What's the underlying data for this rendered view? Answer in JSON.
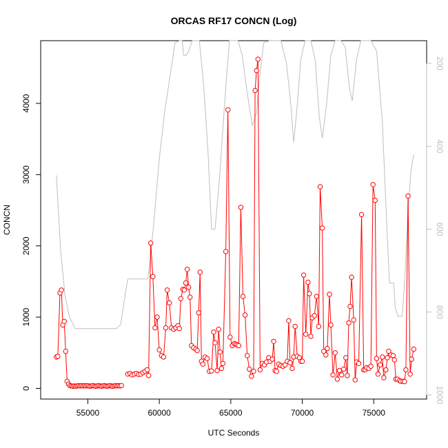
{
  "chart_data": {
    "type": "line",
    "title": "ORCAS RF17 CONCN (Log)",
    "xlabel": "UTC Seconds",
    "ylabel": "CONCN",
    "xlim": [
      51700,
      78700
    ],
    "ylim": [
      -150,
      4880
    ],
    "y2lim": [
      1010,
      145
    ],
    "x_ticks": [
      55000,
      60000,
      65000,
      70000,
      75000
    ],
    "y_ticks": [
      0,
      1000,
      2000,
      3000,
      4000
    ],
    "y2_ticks": [
      200,
      400,
      600,
      800,
      1000
    ],
    "grid": false,
    "series": [
      {
        "role": "concn",
        "color": "#ff0000",
        "segments": [
          [
            [
              52800,
              440
            ],
            [
              52900,
              450
            ],
            [
              53050,
              1340
            ],
            [
              53150,
              1380
            ],
            [
              53250,
              890
            ],
            [
              53350,
              940
            ],
            [
              53450,
              520
            ],
            [
              53550,
              100
            ],
            [
              53650,
              60
            ],
            [
              53750,
              40
            ],
            [
              53850,
              35
            ],
            [
              53950,
              30
            ],
            [
              54050,
              35
            ],
            [
              54150,
              30
            ],
            [
              54250,
              35
            ],
            [
              54350,
              40
            ],
            [
              54450,
              35
            ],
            [
              54550,
              40
            ],
            [
              54650,
              35
            ],
            [
              54750,
              40
            ],
            [
              54850,
              35
            ],
            [
              54950,
              40
            ],
            [
              55050,
              35
            ],
            [
              55150,
              30
            ],
            [
              55250,
              35
            ],
            [
              55350,
              40
            ],
            [
              55450,
              35
            ],
            [
              55550,
              30
            ],
            [
              55650,
              35
            ],
            [
              55750,
              40
            ],
            [
              55850,
              35
            ],
            [
              55950,
              30
            ],
            [
              56050,
              35
            ],
            [
              56150,
              40
            ],
            [
              56250,
              35
            ],
            [
              56350,
              30
            ],
            [
              56450,
              35
            ],
            [
              56550,
              40
            ],
            [
              56650,
              35
            ],
            [
              56750,
              30
            ],
            [
              56850,
              35
            ],
            [
              56950,
              40
            ],
            [
              57050,
              35
            ],
            [
              57150,
              40
            ],
            [
              57250,
              35
            ],
            [
              57350,
              40
            ]
          ],
          [
            [
              57800,
              200
            ],
            [
              57950,
              210
            ],
            [
              58100,
              190
            ],
            [
              58250,
              200
            ],
            [
              58400,
              210
            ],
            [
              58550,
              195
            ],
            [
              58700,
              200
            ],
            [
              58850,
              220
            ],
            [
              59000,
              240
            ],
            [
              59150,
              260
            ],
            [
              59250,
              180
            ],
            [
              59400,
              2040
            ],
            [
              59550,
              1570
            ],
            [
              59700,
              850
            ],
            [
              59850,
              1000
            ],
            [
              60000,
              540
            ],
            [
              60150,
              460
            ],
            [
              60300,
              440
            ],
            [
              60450,
              850
            ],
            [
              60550,
              1380
            ],
            [
              60700,
              1200
            ],
            [
              60850,
              850
            ],
            [
              61000,
              830
            ],
            [
              61150,
              850
            ],
            [
              61300,
              880
            ],
            [
              61400,
              840
            ],
            [
              61500,
              1260
            ],
            [
              61650,
              1390
            ],
            [
              61750,
              1380
            ],
            [
              61850,
              1480
            ],
            [
              61950,
              1670
            ],
            [
              62050,
              1420
            ],
            [
              62150,
              1280
            ],
            [
              62250,
              600
            ],
            [
              62400,
              570
            ],
            [
              62550,
              550
            ],
            [
              62650,
              530
            ],
            [
              62750,
              1060
            ],
            [
              62850,
              1630
            ],
            [
              62950,
              380
            ],
            [
              63050,
              340
            ],
            [
              63200,
              440
            ],
            [
              63350,
              420
            ],
            [
              63500,
              240
            ],
            [
              63650,
              245
            ],
            [
              63800,
              790
            ],
            [
              63900,
              640
            ],
            [
              64050,
              250
            ],
            [
              64150,
              830
            ],
            [
              64250,
              510
            ],
            [
              64350,
              280
            ],
            [
              64450,
              350
            ],
            [
              64650,
              1920
            ],
            [
              64800,
              3910
            ],
            [
              64950,
              720
            ],
            [
              65100,
              600
            ],
            [
              65250,
              630
            ],
            [
              65350,
              620
            ],
            [
              65450,
              610
            ],
            [
              65550,
              600
            ],
            [
              65700,
              2540
            ],
            [
              65850,
              1290
            ],
            [
              66000,
              1030
            ],
            [
              66150,
              460
            ],
            [
              66300,
              270
            ],
            [
              66450,
              170
            ],
            [
              66600,
              240
            ],
            [
              66700,
              4180
            ],
            [
              66800,
              4460
            ],
            [
              66900,
              4620
            ],
            [
              67050,
              260
            ],
            [
              67200,
              350
            ],
            [
              67350,
              330
            ],
            [
              67500,
              370
            ],
            [
              67650,
              430
            ],
            [
              67750,
              380
            ],
            [
              67900,
              410
            ],
            [
              68000,
              660
            ],
            [
              68100,
              250
            ],
            [
              68200,
              240
            ],
            [
              68350,
              340
            ],
            [
              68500,
              320
            ],
            [
              68650,
              310
            ],
            [
              68800,
              330
            ],
            [
              68950,
              380
            ],
            [
              69050,
              950
            ],
            [
              69150,
              360
            ],
            [
              69300,
              280
            ],
            [
              69400,
              440
            ],
            [
              69500,
              870
            ],
            [
              69650,
              450
            ],
            [
              69800,
              430
            ],
            [
              69900,
              380
            ],
            [
              70000,
              380
            ],
            [
              70100,
              1590
            ],
            [
              70250,
              760
            ],
            [
              70400,
              1490
            ],
            [
              70500,
              1330
            ],
            [
              70600,
              730
            ],
            [
              70700,
              990
            ],
            [
              70850,
              1020
            ],
            [
              71000,
              1290
            ],
            [
              71150,
              870
            ],
            [
              71250,
              2830
            ],
            [
              71400,
              2250
            ],
            [
              71500,
              520
            ],
            [
              71650,
              470
            ],
            [
              71750,
              560
            ],
            [
              71900,
              1320
            ],
            [
              72000,
              890
            ],
            [
              72150,
              190
            ],
            [
              72300,
              500
            ],
            [
              72450,
              130
            ],
            [
              72600,
              250
            ],
            [
              72750,
              190
            ],
            [
              72900,
              270
            ],
            [
              73050,
              430
            ],
            [
              73150,
              180
            ],
            [
              73250,
              920
            ],
            [
              73350,
              1150
            ],
            [
              73450,
              1560
            ],
            [
              73600,
              960
            ],
            [
              73700,
              120
            ],
            [
              73800,
              370
            ],
            [
              73950,
              350
            ],
            [
              74150,
              2440
            ],
            [
              74300,
              260
            ],
            [
              74400,
              260
            ],
            [
              74500,
              290
            ],
            [
              74650,
              280
            ],
            [
              74800,
              310
            ],
            [
              74950,
              2860
            ],
            [
              75100,
              2640
            ],
            [
              75200,
              420
            ],
            [
              75300,
              200
            ],
            [
              75450,
              330
            ],
            [
              75600,
              440
            ],
            [
              75700,
              150
            ],
            [
              75850,
              260
            ],
            [
              75950,
              430
            ],
            [
              76050,
              520
            ],
            [
              76200,
              470
            ],
            [
              76350,
              460
            ],
            [
              76450,
              400
            ],
            [
              76550,
              130
            ],
            [
              76650,
              130
            ],
            [
              76800,
              110
            ],
            [
              76900,
              100
            ],
            [
              77050,
              100
            ],
            [
              77150,
              95
            ],
            [
              77250,
              260
            ],
            [
              77400,
              2700
            ],
            [
              77550,
              200
            ],
            [
              77650,
              410
            ],
            [
              77800,
              550
            ]
          ]
        ]
      },
      {
        "role": "secondary-axis",
        "color": "#bebebe",
        "points": [
          [
            52800,
            470
          ],
          [
            53100,
            650
          ],
          [
            53400,
            760
          ],
          [
            53700,
            810
          ],
          [
            54100,
            840
          ],
          [
            54500,
            840
          ],
          [
            55000,
            840
          ],
          [
            55500,
            840
          ],
          [
            56000,
            840
          ],
          [
            56500,
            840
          ],
          [
            57000,
            840
          ],
          [
            57300,
            830
          ],
          [
            57600,
            760
          ],
          [
            57800,
            720
          ],
          [
            58200,
            720
          ],
          [
            58800,
            720
          ],
          [
            59200,
            720
          ],
          [
            59600,
            590
          ],
          [
            60000,
            430
          ],
          [
            60400,
            310
          ],
          [
            60800,
            220
          ],
          [
            61100,
            150
          ],
          [
            61400,
            120
          ],
          [
            61600,
            140
          ],
          [
            61700,
            180
          ],
          [
            61900,
            180
          ],
          [
            62050,
            170
          ],
          [
            62300,
            120
          ],
          [
            62600,
            115
          ],
          [
            62800,
            130
          ],
          [
            63100,
            250
          ],
          [
            63400,
            410
          ],
          [
            63650,
            600
          ],
          [
            63900,
            600
          ],
          [
            64200,
            480
          ],
          [
            64600,
            280
          ],
          [
            64900,
            140
          ],
          [
            65200,
            100
          ],
          [
            65500,
            120
          ],
          [
            65800,
            180
          ],
          [
            66100,
            260
          ],
          [
            66500,
            350
          ],
          [
            66800,
            320
          ],
          [
            67000,
            240
          ],
          [
            67300,
            150
          ],
          [
            67700,
            90
          ],
          [
            68100,
            80
          ],
          [
            68500,
            110
          ],
          [
            68900,
            200
          ],
          [
            69200,
            300
          ],
          [
            69400,
            390
          ],
          [
            69600,
            320
          ],
          [
            69900,
            190
          ],
          [
            70200,
            90
          ],
          [
            70600,
            110
          ],
          [
            70900,
            190
          ],
          [
            71200,
            330
          ],
          [
            71400,
            380
          ],
          [
            71700,
            300
          ],
          [
            72000,
            180
          ],
          [
            72300,
            90
          ],
          [
            72700,
            110
          ],
          [
            73000,
            160
          ],
          [
            73300,
            260
          ],
          [
            73500,
            290
          ],
          [
            73800,
            190
          ],
          [
            74100,
            100
          ],
          [
            74400,
            80
          ],
          [
            74800,
            90
          ],
          [
            75200,
            170
          ],
          [
            75600,
            340
          ],
          [
            75900,
            580
          ],
          [
            76100,
            730
          ],
          [
            76400,
            730
          ],
          [
            76500,
            790
          ],
          [
            76700,
            810
          ],
          [
            77000,
            810
          ],
          [
            77200,
            700
          ],
          [
            77400,
            560
          ],
          [
            77600,
            460
          ],
          [
            77800,
            420
          ]
        ]
      }
    ]
  }
}
